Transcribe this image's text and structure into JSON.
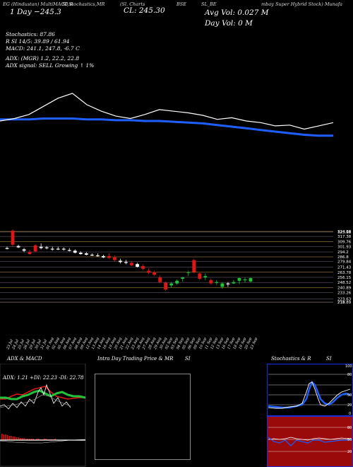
{
  "header": {
    "left": "EG (Hindustan) MultiMACD & ",
    "left2": "SI,Stochastics,MR",
    "mid1": "(Sl. Charts",
    "mid2": "BSE",
    "mid3": "SL_BE",
    "right": "mbay Super Hybrid Stock) Munafa"
  },
  "big": {
    "close": "CL: 245.30",
    "day": "1 Day  −245.3",
    "avg_vol": "Avg Vol: 0.027 M",
    "day_vol": "Day Vol: 0   M"
  },
  "info": {
    "l1": "Stochastics: 87.86",
    "l2": "R           SI 14/5: 39.89 / 61.94",
    "l3": "MACD: 241.1, 247.8, -6.7 C",
    "l4": "ADX:            (MGR) 1.2, 22.2, 22.8",
    "l5": "ADX  signal: SELL Growing ↑ 1%"
  },
  "panels": {
    "adx_title": "ADX  & MACD",
    "adx_values": "ADX: 1.21 +DI: 22.23 -DI: 22.78",
    "intra_title": "Intra  Day Trading Price  & MR",
    "intra_title2": "SI",
    "stoch_title": "Stochastics & R",
    "stoch_title2": "SI"
  },
  "stoch_axis": [
    "100",
    "80",
    "50",
    "20",
    "0"
  ],
  "rsi_axis": [
    "80",
    "50",
    "20"
  ],
  "colors": {
    "ema": "#1f5fff",
    "up": "#22c33a",
    "down": "#e01515",
    "neutral": "#ffffff",
    "level": "#c9a24a"
  },
  "chart_data": {
    "type": "candlestick",
    "price_levels": [
      "324.88",
      "323.98",
      "317.38",
      "309.76",
      "301.93",
      "294.2",
      "286.8",
      "279.84",
      "271.43",
      "263.78",
      "256.15",
      "248.52",
      "240.89",
      "233.26",
      "223.63",
      "219",
      "218.89"
    ],
    "dates": [
      "23 Jul",
      "24 Jul",
      "25 Jul",
      "26 Jul",
      "29 Jul",
      "30 Jul",
      "31 Jul",
      "01 Aug",
      "02 Aug",
      "05 Aug",
      "06 Aug",
      "07 Aug",
      "08 Aug",
      "09 Aug",
      "12 Aug",
      "13 Aug",
      "14 Aug",
      "16 Aug",
      "19 Aug",
      "20 Aug",
      "21 Aug",
      "22 Aug",
      "23 Aug",
      "26 Aug",
      "27 Aug",
      "28 Aug",
      "29 Aug",
      "30 Aug",
      "02 Sep",
      "03 Sep",
      "04 Sep",
      "05 Sep",
      "06 Sep",
      "09 Sep",
      "10 Sep",
      "11 Sep",
      "12 Sep",
      "13 Sep",
      "16 Sep",
      "17 Sep",
      "18 Sep",
      "19 Sep",
      "20 Sep",
      "23 Sep"
    ],
    "candles": [
      [
        300,
        302,
        298,
        300,
        "n"
      ],
      [
        326,
        328,
        302,
        305,
        "d"
      ],
      [
        303,
        305,
        300,
        301,
        "n"
      ],
      [
        298,
        300,
        294,
        296,
        "n"
      ],
      [
        294,
        297,
        290,
        291,
        "d"
      ],
      [
        295,
        306,
        294,
        304,
        "d"
      ],
      [
        302,
        307,
        298,
        300,
        "n"
      ],
      [
        300,
        303,
        298,
        301,
        "n"
      ],
      [
        299,
        302,
        296,
        298,
        "n"
      ],
      [
        299,
        302,
        297,
        299,
        "n"
      ],
      [
        299,
        301,
        296,
        298,
        "n"
      ],
      [
        297,
        300,
        295,
        297,
        "n"
      ],
      [
        296,
        298,
        292,
        293,
        "n"
      ],
      [
        293,
        295,
        290,
        291,
        "n"
      ],
      [
        292,
        294,
        289,
        290,
        "n"
      ],
      [
        290,
        292,
        288,
        289,
        "n"
      ],
      [
        289,
        292,
        287,
        288,
        "n"
      ],
      [
        288,
        290,
        285,
        286,
        "n"
      ],
      [
        288,
        292,
        284,
        285,
        "d"
      ],
      [
        286,
        289,
        280,
        282,
        "d"
      ],
      [
        281,
        284,
        277,
        279,
        "n"
      ],
      [
        279,
        282,
        276,
        278,
        "n"
      ],
      [
        278,
        280,
        273,
        274,
        "d"
      ],
      [
        276,
        278,
        271,
        272,
        "n"
      ],
      [
        273,
        276,
        267,
        269,
        "d"
      ],
      [
        266,
        270,
        261,
        263,
        "d"
      ],
      [
        264,
        266,
        258,
        260,
        "d"
      ],
      [
        256,
        259,
        247,
        249,
        "d"
      ],
      [
        248,
        250,
        236,
        238,
        "d"
      ],
      [
        244,
        249,
        241,
        247,
        "u"
      ],
      [
        251,
        253,
        245,
        247,
        "u"
      ],
      [
        254,
        257,
        250,
        256,
        "u"
      ],
      [
        263,
        266,
        258,
        264,
        "u"
      ],
      [
        282,
        284,
        262,
        264,
        "d"
      ],
      [
        262,
        264,
        252,
        254,
        "d"
      ],
      [
        258,
        262,
        252,
        256,
        "u"
      ],
      [
        252,
        254,
        245,
        247,
        "d"
      ],
      [
        249,
        252,
        245,
        248,
        "u"
      ],
      [
        242,
        249,
        239,
        247,
        "u"
      ],
      [
        246,
        249,
        242,
        247,
        "n"
      ],
      [
        249,
        252,
        246,
        247,
        "u"
      ],
      [
        251,
        256,
        246,
        255,
        "u"
      ],
      [
        252,
        256,
        248,
        253,
        "u"
      ],
      [
        250,
        256,
        248,
        255,
        "u"
      ]
    ],
    "ema_line": [
      38,
      38,
      38,
      37,
      37,
      37,
      38,
      38,
      39,
      39,
      40,
      40,
      41,
      42,
      43,
      45,
      47,
      49,
      51,
      53,
      55,
      57,
      58,
      58
    ],
    "price_line": [
      40,
      37,
      32,
      22,
      12,
      6,
      20,
      28,
      34,
      37,
      32,
      26,
      28,
      30,
      33,
      38,
      36,
      40,
      42,
      46,
      45,
      50,
      46,
      42
    ]
  }
}
